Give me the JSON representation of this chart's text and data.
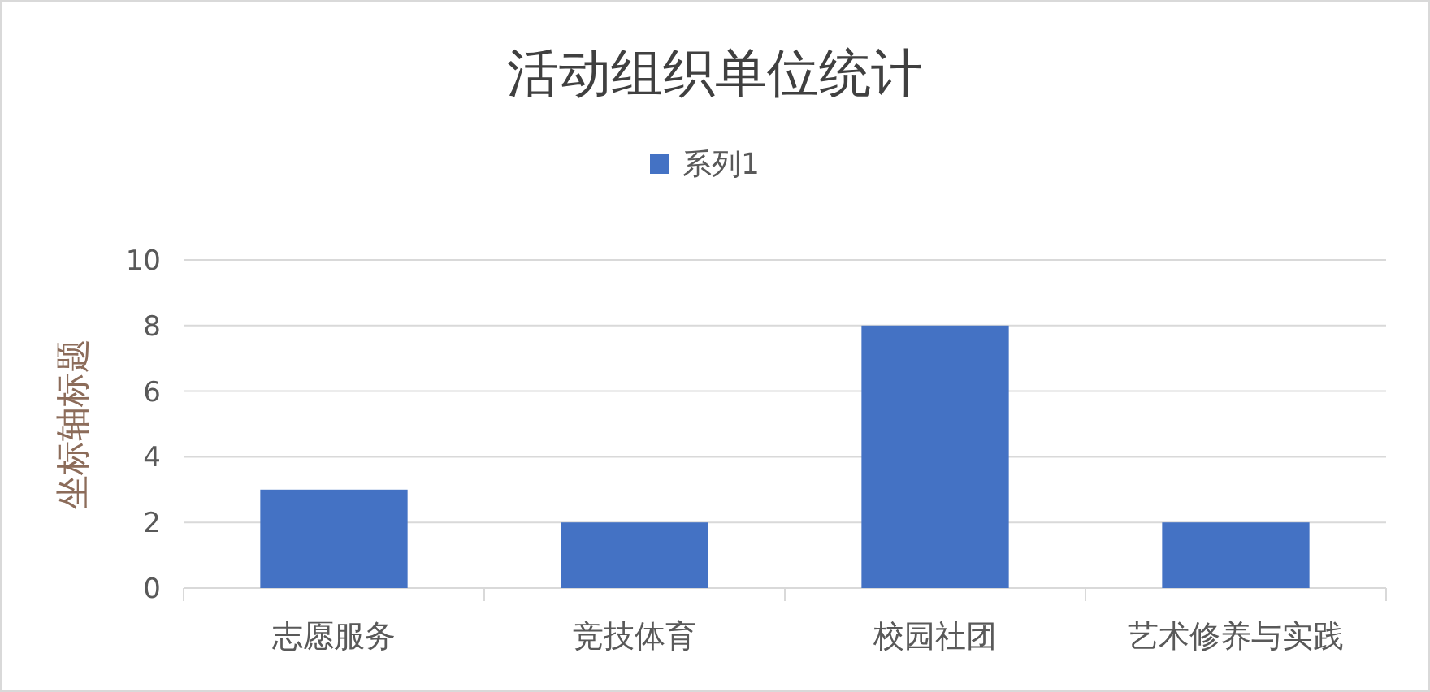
{
  "chart_data": {
    "type": "bar",
    "title": "活动组织单位统计",
    "ylabel": "坐标轴标题",
    "categories": [
      "志愿服务",
      "竞技体育",
      "校园社团",
      "艺术修养与实践"
    ],
    "series": [
      {
        "name": "系列1",
        "color": "#4472c4",
        "values": [
          3,
          2,
          8,
          2
        ]
      }
    ],
    "ylim": [
      0,
      10
    ],
    "yticks": [
      0,
      2,
      4,
      6,
      8,
      10
    ],
    "grid": "y",
    "legend": "top"
  }
}
